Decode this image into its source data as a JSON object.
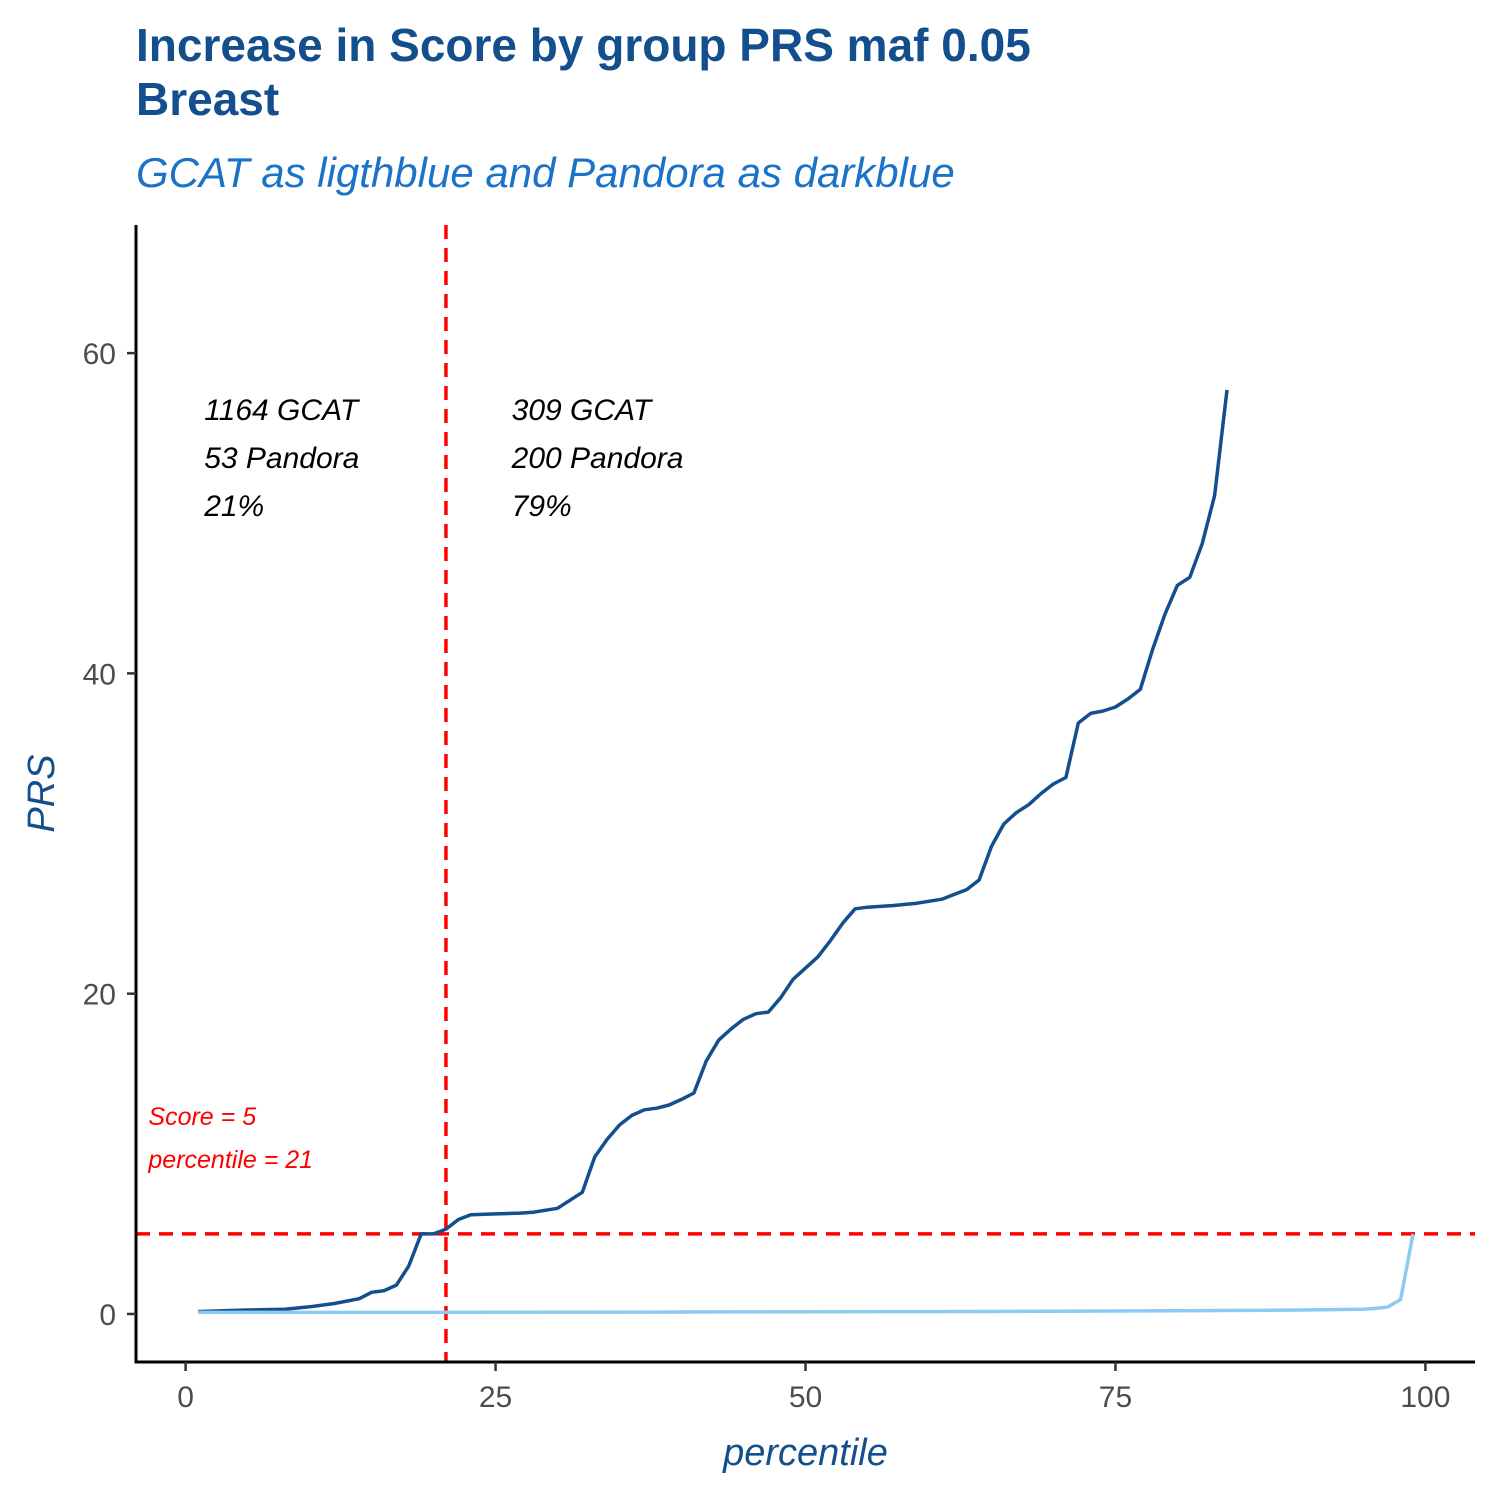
{
  "chart_data": {
    "type": "line",
    "title_lines": [
      "Increase in Score by group PRS maf 0.05",
      "Breast"
    ],
    "subtitle": "GCAT as ligthblue and Pandora as darkblue",
    "xlabel": "percentile",
    "ylabel": "PRS",
    "xlim": [
      -4,
      104
    ],
    "ylim": [
      -3,
      68
    ],
    "x_ticks": [
      0,
      25,
      50,
      75,
      100
    ],
    "y_ticks": [
      0,
      20,
      40,
      60
    ],
    "grid": false,
    "series": [
      {
        "color": "#134f8c",
        "points": [
          [
            1,
            0.15
          ],
          [
            3,
            0.2
          ],
          [
            5,
            0.25
          ],
          [
            8,
            0.3
          ],
          [
            10,
            0.45
          ],
          [
            12,
            0.65
          ],
          [
            14,
            0.95
          ],
          [
            15,
            1.35
          ],
          [
            16,
            1.45
          ],
          [
            17,
            1.8
          ],
          [
            18,
            3
          ],
          [
            19,
            5
          ],
          [
            20,
            5
          ],
          [
            21,
            5.3
          ],
          [
            22,
            5.9
          ],
          [
            23,
            6.2
          ],
          [
            25,
            6.25
          ],
          [
            27,
            6.3
          ],
          [
            28,
            6.35
          ],
          [
            30,
            6.6
          ],
          [
            31,
            7.1
          ],
          [
            32,
            7.6
          ],
          [
            33,
            9.8
          ],
          [
            34,
            10.9
          ],
          [
            35,
            11.8
          ],
          [
            36,
            12.4
          ],
          [
            37,
            12.75
          ],
          [
            38,
            12.85
          ],
          [
            39,
            13.05
          ],
          [
            40,
            13.4
          ],
          [
            41,
            13.8
          ],
          [
            42,
            15.8
          ],
          [
            43,
            17.1
          ],
          [
            44,
            17.8
          ],
          [
            45,
            18.4
          ],
          [
            46,
            18.75
          ],
          [
            47,
            18.85
          ],
          [
            48,
            19.75
          ],
          [
            49,
            20.9
          ],
          [
            50,
            21.6
          ],
          [
            51,
            22.3
          ],
          [
            52,
            23.3
          ],
          [
            53,
            24.4
          ],
          [
            54,
            25.3
          ],
          [
            55,
            25.4
          ],
          [
            57,
            25.5
          ],
          [
            59,
            25.65
          ],
          [
            61,
            25.9
          ],
          [
            62,
            26.2
          ],
          [
            63,
            26.5
          ],
          [
            64,
            27.1
          ],
          [
            65,
            29.2
          ],
          [
            66,
            30.6
          ],
          [
            67,
            31.3
          ],
          [
            68,
            31.8
          ],
          [
            69,
            32.5
          ],
          [
            70,
            33.1
          ],
          [
            71,
            33.5
          ],
          [
            72,
            36.9
          ],
          [
            73,
            37.5
          ],
          [
            74,
            37.65
          ],
          [
            75,
            37.9
          ],
          [
            76,
            38.4
          ],
          [
            77,
            39
          ],
          [
            78,
            41.5
          ],
          [
            79,
            43.7
          ],
          [
            80,
            45.5
          ],
          [
            81,
            46
          ],
          [
            82,
            48.1
          ],
          [
            83,
            51.1
          ],
          [
            84,
            57.7
          ]
        ]
      },
      {
        "color": "#8ecbf0",
        "points": [
          [
            1,
            0.1
          ],
          [
            20,
            0.1
          ],
          [
            40,
            0.12
          ],
          [
            60,
            0.15
          ],
          [
            80,
            0.2
          ],
          [
            90,
            0.25
          ],
          [
            95,
            0.3
          ],
          [
            96,
            0.35
          ],
          [
            97,
            0.45
          ],
          [
            98,
            0.9
          ],
          [
            99,
            5
          ]
        ]
      }
    ],
    "reference_lines": [
      {
        "orientation": "horizontal",
        "value": 5,
        "color": "#ff0000"
      },
      {
        "orientation": "vertical",
        "value": 21,
        "color": "#ff0000"
      }
    ],
    "annotations": [
      {
        "lines": [
          "1164 GCAT",
          "53 Pandora",
          "21%"
        ],
        "x": 1.5,
        "y": 56.5,
        "color": "#000000"
      },
      {
        "lines": [
          "309 GCAT",
          "200 Pandora",
          "79%"
        ],
        "x": 26.3,
        "y": 56.5,
        "color": "#000000"
      },
      {
        "lines": [
          "Score = 5",
          "percentile = 21"
        ],
        "x": -3,
        "y": 12.5,
        "color": "#ff0000"
      }
    ]
  }
}
